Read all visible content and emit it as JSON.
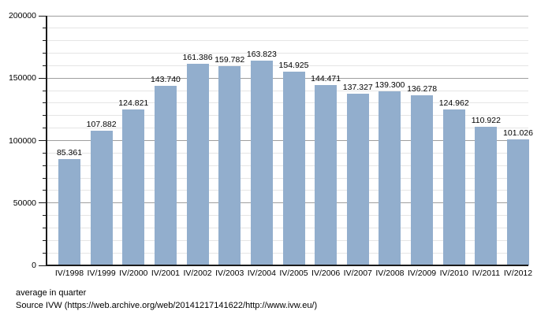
{
  "chart_data": {
    "type": "bar",
    "title": "",
    "xlabel": "",
    "ylabel": "",
    "categories": [
      "IV/1998",
      "IV/1999",
      "IV/2000",
      "IV/2001",
      "IV/2002",
      "IV/2003",
      "IV/2004",
      "IV/2005",
      "IV/2006",
      "IV/2007",
      "IV/2008",
      "IV/2009",
      "IV/2010",
      "IV/2011",
      "IV/2012"
    ],
    "values": [
      85361,
      107882,
      124821,
      143740,
      161386,
      159782,
      163823,
      154925,
      144471,
      137327,
      139300,
      136278,
      124962,
      110922,
      101026
    ],
    "value_labels": [
      "85.361",
      "107.882",
      "124.821",
      "143.740",
      "161.386",
      "159.782",
      "163.823",
      "154.925",
      "144.471",
      "137.327",
      "139.300",
      "136.278",
      "124.962",
      "110.922",
      "101.026"
    ],
    "ylim": [
      0,
      200000
    ],
    "y_major_step": 50000,
    "y_minor_step": 10000,
    "y_tick_labels": [
      "0",
      "50000",
      "100000",
      "150000",
      "200000"
    ],
    "grid": "on",
    "legend": "none",
    "bar_color": "#92aecd"
  },
  "footer": {
    "note": "average in quarter",
    "source": "Source IVW (https://web.archive.org/web/20141217141622/http://www.ivw.eu/)"
  }
}
